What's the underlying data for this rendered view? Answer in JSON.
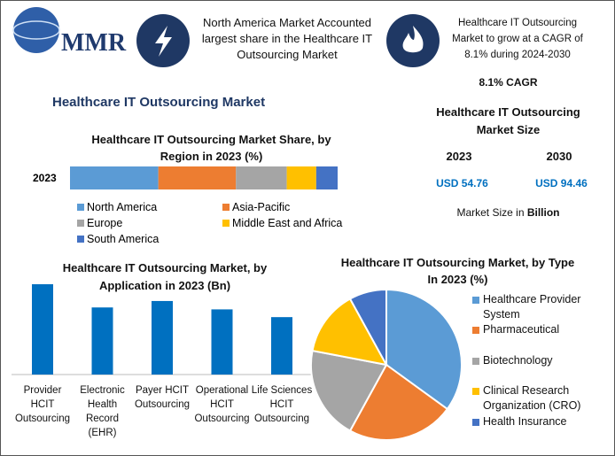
{
  "logo": "MMR",
  "info": [
    "North America Market Accounted largest share in the Healthcare IT Outsourcing Market",
    "Healthcare IT Outsourcing Market to grow at a CAGR of 8.1% during 2024-2030"
  ],
  "cagr": "8.1% CAGR",
  "title": "Healthcare IT Outsourcing Market",
  "market_size": {
    "title": "Healthcare IT Outsourcing Market Size",
    "years": [
      "2023",
      "2030"
    ],
    "values": [
      "USD 54.76",
      "USD 94.46"
    ],
    "note": "Market Size in",
    "note_unit": "Billion"
  },
  "chart_data": [
    {
      "type": "stacked_bar",
      "title": "Healthcare IT Outsourcing Market Share, by Region in 2023 (%)",
      "categories": [
        "2023"
      ],
      "series": [
        {
          "name": "North America",
          "color": "#5b9bd5",
          "values": [
            33
          ]
        },
        {
          "name": "Asia-Pacific",
          "color": "#ed7d31",
          "values": [
            29
          ]
        },
        {
          "name": "Europe",
          "color": "#a5a5a5",
          "values": [
            19
          ]
        },
        {
          "name": "Middle East and Africa",
          "color": "#ffc000",
          "values": [
            11
          ]
        },
        {
          "name": "South America",
          "color": "#4472c4",
          "values": [
            8
          ]
        }
      ]
    },
    {
      "type": "bar",
      "title": "Healthcare IT Outsourcing Market, by Application in 2023 (Bn)",
      "color": "#0070c0",
      "categories": [
        "Provider HCIT Outsourcing",
        "Electronic Health Record (EHR)",
        "Payer HCIT Outsourcing",
        "Operational HCIT Outsourcing",
        "Life Sciences HCIT Outsourcing"
      ],
      "values": [
        14.0,
        10.4,
        11.4,
        10.1,
        8.9
      ]
    },
    {
      "type": "pie",
      "title": "Healthcare IT Outsourcing Market, by Type In 2023 (%)",
      "categories": [
        "Healthcare Provider System",
        "Pharmaceutical",
        "Biotechnology",
        "Clinical Research Organization (CRO)",
        "Health Insurance"
      ],
      "colors": [
        "#5b9bd5",
        "#ed7d31",
        "#a5a5a5",
        "#ffc000",
        "#4472c4"
      ],
      "values": [
        35,
        23,
        20,
        14,
        8
      ]
    }
  ]
}
